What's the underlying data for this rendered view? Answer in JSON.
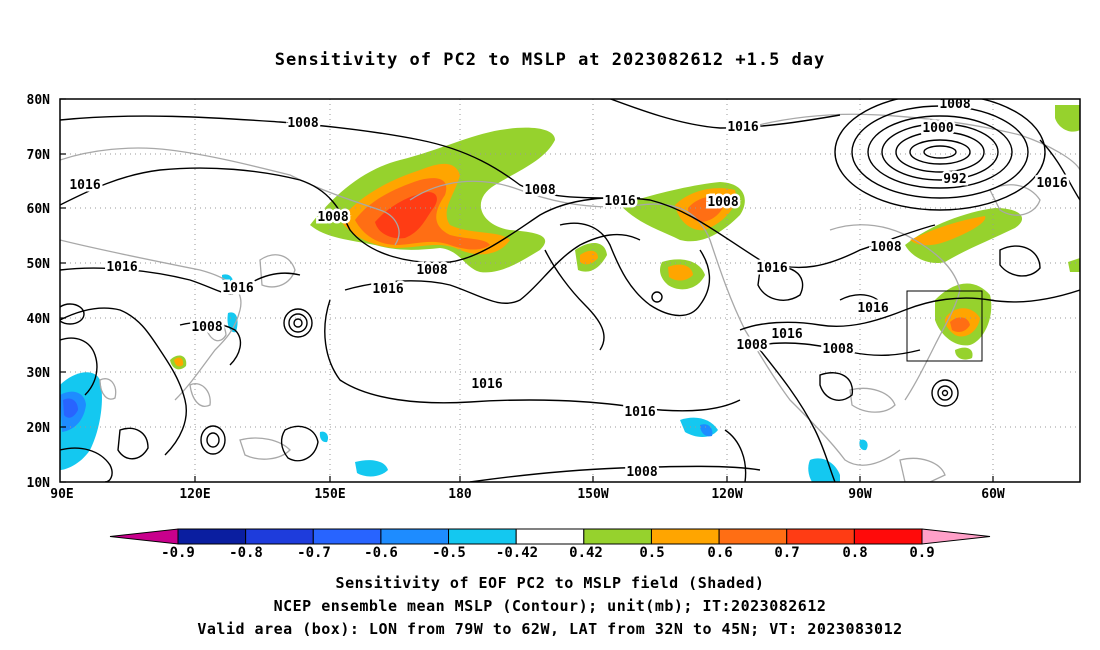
{
  "title": "Sensitivity of PC2 to MSLP at 2023082612 +1.5 day",
  "lat_labels": [
    "80N",
    "70N",
    "60N",
    "50N",
    "40N",
    "30N",
    "20N",
    "10N"
  ],
  "lon_labels": [
    "90E",
    "120E",
    "150E",
    "180",
    "150W",
    "120W",
    "90W",
    "60W"
  ],
  "contour_labels": [
    "1008",
    "1016",
    "1016",
    "1008",
    "1008",
    "1016",
    "1016",
    "1008",
    "1016",
    "1008",
    "1000",
    "992",
    "1016",
    "1016",
    "1008",
    "1016",
    "1008",
    "1016",
    "1016",
    "1016",
    "1008",
    "1008",
    "1016",
    "1008",
    "1016",
    "1008"
  ],
  "colorbar": {
    "labels": [
      "-0.9",
      "-0.8",
      "-0.7",
      "-0.6",
      "-0.5",
      "-0.42",
      "0.42",
      "0.5",
      "0.6",
      "0.7",
      "0.8",
      "0.9"
    ],
    "colors": [
      "#c8008c",
      "#0a1ea0",
      "#1e3cdc",
      "#2864ff",
      "#1e8cff",
      "#14c8f0",
      "#ffffff",
      "#96d22d",
      "#ffa500",
      "#ff6e14",
      "#ff3c14",
      "#ff0a0a",
      "#ffa0c8"
    ]
  },
  "captions": [
    "Sensitivity of EOF PC2 to MSLP field (Shaded)",
    "NCEP ensemble mean MSLP (Contour); unit(mb); IT:2023082612",
    "Valid area (box): LON from 79W to 62W, LAT from 32N to 45N; VT: 2023083012"
  ]
}
